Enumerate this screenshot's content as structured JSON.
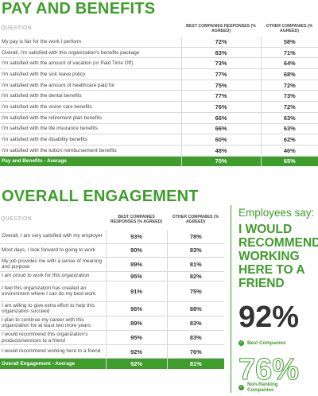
{
  "pay_section": {
    "title": "PAY AND BENEFITS",
    "col_question": "QUESTION",
    "col_best": "BEST COMPANIES RESPONSES (% AGREED)",
    "col_other": "OTHER COMPANIES (% AGREED)",
    "rows": [
      {
        "q": "My pay is fair for the work I perform",
        "best": "72%",
        "other": "58%"
      },
      {
        "q": "Overall, I'm satisfied with this organization's benefits package",
        "best": "83%",
        "other": "71%"
      },
      {
        "q": "I'm satisfied with the amount of vacation (or Paid Time Off)",
        "best": "73%",
        "other": "64%"
      },
      {
        "q": "I'm satisfied with the sick leave policy",
        "best": "77%",
        "other": "68%"
      },
      {
        "q": "I'm satisfied with the amount of healthcare paid for",
        "best": "75%",
        "other": "72%"
      },
      {
        "q": "I'm satisfied with the dental benefits",
        "best": "77%",
        "other": "73%"
      },
      {
        "q": "I'm satisfied with the vision care benefits",
        "best": "76%",
        "other": "72%"
      },
      {
        "q": "I'm satisfied with the retirement plan benefits",
        "best": "66%",
        "other": "63%"
      },
      {
        "q": "I'm satisfied with the life insurance benefits",
        "best": "66%",
        "other": "63%"
      },
      {
        "q": "I'm satisfied with the disability benefits",
        "best": "60%",
        "other": "62%"
      },
      {
        "q": "I'm satisfied with the tuition reimbursement benefits",
        "best": "48%",
        "other": "46%"
      }
    ],
    "average": {
      "q": "Pay and Benefits - Average",
      "best": "70%",
      "other": "65%"
    }
  },
  "engagement_section": {
    "title": "OVERALL ENGAGEMENT",
    "col_question": "QUESTION",
    "col_best": "BEST COMPANIES RESPONSES (% AGREED)",
    "col_other": "OTHER COMPANIES (% AGREED)",
    "rows": [
      {
        "q": "Overall, I am very satisfied with my employer",
        "best": "93%",
        "other": "78%"
      },
      {
        "q": "Most days, I look forward to going to work",
        "best": "90%",
        "other": "83%"
      },
      {
        "q": "My job provides me with a sense of meaning and purpose",
        "best": "89%",
        "other": "81%"
      },
      {
        "q": "I am proud to work for this organization",
        "best": "95%",
        "other": "82%"
      },
      {
        "q": "I feel this organization has created an environment where I can do my best work",
        "best": "91%",
        "other": "75%"
      },
      {
        "q": "I am willing to give extra effort to help this organization succeed",
        "best": "96%",
        "other": "88%"
      },
      {
        "q": "I plan to continue my career with this organization for at least two more years",
        "best": "89%",
        "other": "83%"
      },
      {
        "q": "I would recommend this organization's products/services to a friend",
        "best": "95%",
        "other": "83%"
      },
      {
        "q": "I would recommend working here to a friend",
        "best": "92%",
        "other": "76%"
      }
    ],
    "average": {
      "q": "Overall Engagement - Average",
      "best": "92%",
      "other": "81%"
    }
  },
  "sidebar": {
    "heading": "Employees say:",
    "quote": "I WOULD RECOMMEND WORKING HERE TO A FRIEND",
    "best_value": "92%",
    "best_label": "Best Companies",
    "other_value": "76%",
    "other_label": "Non-Ranking Companies",
    "bullet_glyph": "✓"
  },
  "colors": {
    "accent": "#3e9d2b"
  }
}
